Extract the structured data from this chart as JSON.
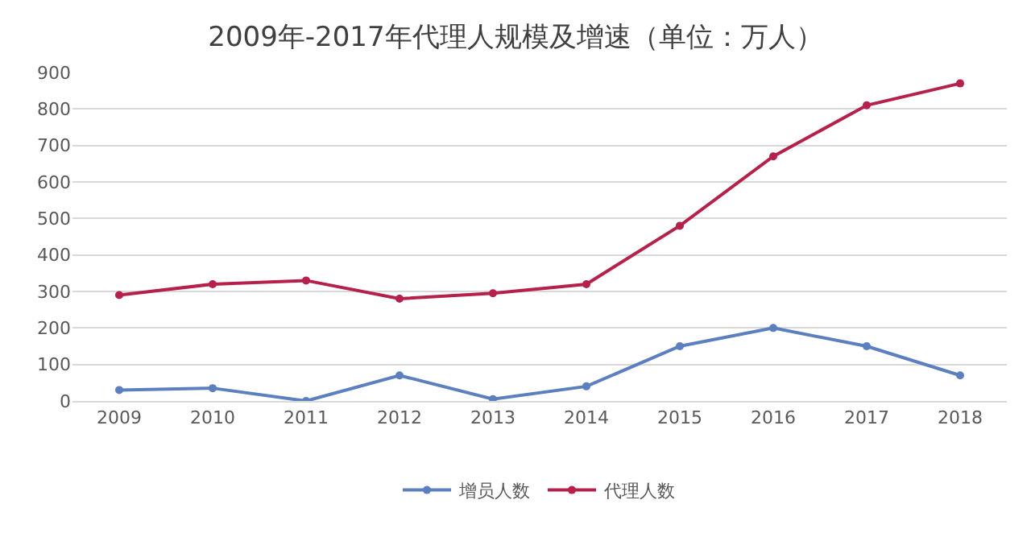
{
  "chart_data": {
    "type": "line",
    "title": "2009年-2017年代理人规模及增速（单位：万人）",
    "categories": [
      "2009",
      "2010",
      "2011",
      "2012",
      "2013",
      "2014",
      "2015",
      "2016",
      "2017",
      "2018"
    ],
    "series": [
      {
        "name": "增员人数",
        "color": "#5b7fbf",
        "values": [
          30,
          35,
          0,
          70,
          5,
          40,
          150,
          200,
          150,
          70
        ]
      },
      {
        "name": "代理人数",
        "color": "#b5214a",
        "values": [
          290,
          320,
          330,
          280,
          295,
          320,
          480,
          670,
          810,
          870
        ]
      }
    ],
    "ylim": [
      0,
      900
    ],
    "yticks": [
      0,
      100,
      200,
      300,
      400,
      500,
      600,
      700,
      800,
      900
    ],
    "grid": "y",
    "legend": "bottom",
    "marker": "circle",
    "line_style": "solid"
  }
}
